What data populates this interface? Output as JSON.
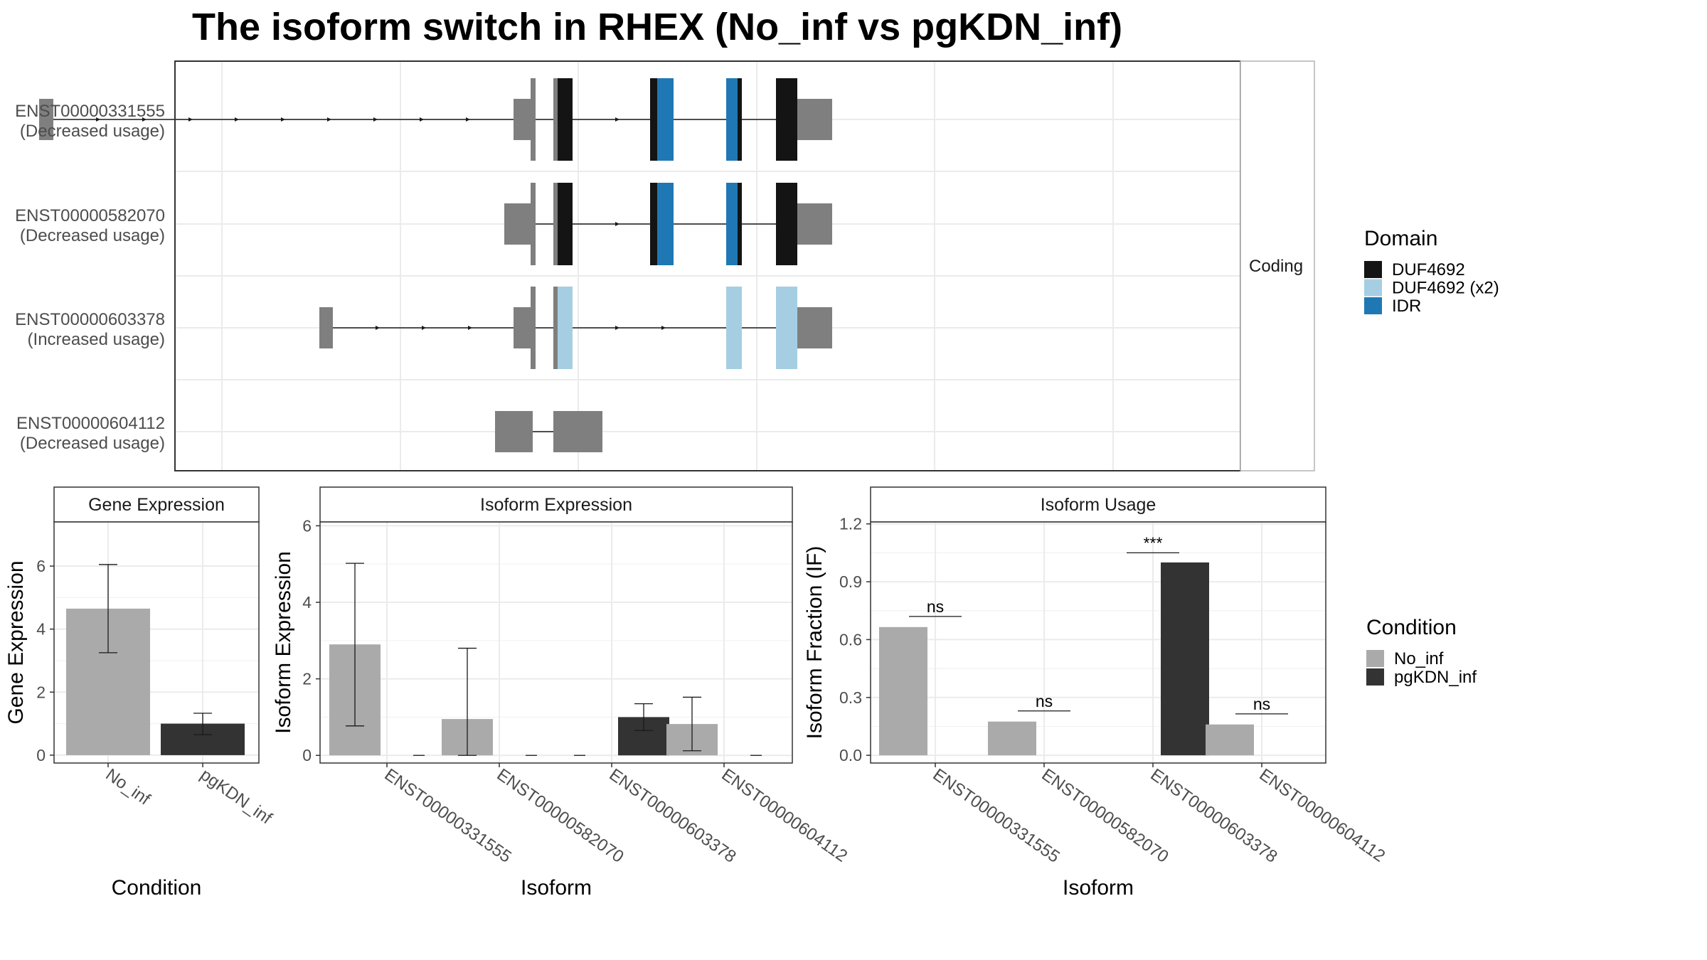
{
  "title": "The isoform switch in RHEX (No_inf vs pgKDN_inf)",
  "colors": {
    "utr": "#7f7f7f",
    "DUF4692": "#141414",
    "DUF4692 (x2)": "#a6cee3",
    "IDR": "#1f78b4",
    "No_inf": "#aaaaaa",
    "pgKDN_inf": "#333333"
  },
  "domain_legend": {
    "title": "Domain",
    "items": [
      "DUF4692",
      "DUF4692 (x2)",
      "IDR"
    ]
  },
  "condition_legend": {
    "title": "Condition",
    "items": [
      "No_inf",
      "pgKDN_inf"
    ]
  },
  "structure_strip": "Coding",
  "chart_data": [
    {
      "type": "gene-structure",
      "strip": "Coding",
      "transcripts": [
        {
          "id": "ENST00000331555",
          "usage": "(Decreased usage)",
          "exons": [
            {
              "start": 55,
              "end": 75,
              "type": "utr"
            },
            {
              "start": 722,
              "end": 746,
              "type": "utr"
            },
            {
              "start": 746,
              "end": 753,
              "type": "utr-narrow"
            },
            {
              "start": 778,
              "end": 784,
              "type": "utr-narrow"
            },
            {
              "start": 784,
              "end": 805,
              "type": "DUF4692"
            },
            {
              "start": 914,
              "end": 924,
              "type": "DUF4692"
            },
            {
              "start": 924,
              "end": 947,
              "type": "IDR"
            },
            {
              "start": 1021,
              "end": 1037,
              "type": "IDR"
            },
            {
              "start": 1037,
              "end": 1043,
              "type": "DUF4692"
            },
            {
              "start": 1091,
              "end": 1121,
              "type": "DUF4692"
            },
            {
              "start": 1121,
              "end": 1170,
              "type": "utr"
            }
          ]
        },
        {
          "id": "ENST00000582070",
          "usage": "(Decreased usage)",
          "exons": [
            {
              "start": 709,
              "end": 746,
              "type": "utr"
            },
            {
              "start": 746,
              "end": 753,
              "type": "utr-narrow"
            },
            {
              "start": 778,
              "end": 784,
              "type": "utr-narrow"
            },
            {
              "start": 784,
              "end": 805,
              "type": "DUF4692"
            },
            {
              "start": 914,
              "end": 924,
              "type": "DUF4692"
            },
            {
              "start": 924,
              "end": 947,
              "type": "IDR"
            },
            {
              "start": 1021,
              "end": 1037,
              "type": "IDR"
            },
            {
              "start": 1037,
              "end": 1043,
              "type": "DUF4692"
            },
            {
              "start": 1091,
              "end": 1121,
              "type": "DUF4692"
            },
            {
              "start": 1121,
              "end": 1170,
              "type": "utr"
            }
          ]
        },
        {
          "id": "ENST00000603378",
          "usage": "(Increased usage)",
          "exons": [
            {
              "start": 449,
              "end": 468,
              "type": "utr"
            },
            {
              "start": 722,
              "end": 746,
              "type": "utr"
            },
            {
              "start": 746,
              "end": 753,
              "type": "utr-narrow"
            },
            {
              "start": 778,
              "end": 784,
              "type": "utr-narrow"
            },
            {
              "start": 784,
              "end": 805,
              "type": "DUF4692 (x2)"
            },
            {
              "start": 1021,
              "end": 1043,
              "type": "DUF4692 (x2)"
            },
            {
              "start": 1091,
              "end": 1121,
              "type": "DUF4692 (x2)"
            },
            {
              "start": 1121,
              "end": 1170,
              "type": "utr"
            }
          ]
        },
        {
          "id": "ENST00000604112",
          "usage": "(Decreased usage)",
          "exons": [
            {
              "start": 696,
              "end": 749,
              "type": "utr"
            },
            {
              "start": 778,
              "end": 847,
              "type": "utr"
            }
          ]
        }
      ]
    },
    {
      "type": "bar",
      "strip": "Gene Expression",
      "xlabel": "Condition",
      "ylabel": "Gene Expression",
      "ylim": [
        -0.25,
        7.4
      ],
      "yticks": [
        0,
        2,
        4,
        6
      ],
      "categories": [
        "No_inf",
        "pgKDN_inf"
      ],
      "values": [
        4.65,
        1.0
      ],
      "errors": [
        [
          3.25,
          6.05
        ],
        [
          0.65,
          1.33
        ]
      ]
    },
    {
      "type": "bar",
      "strip": "Isoform Expression",
      "xlabel": "Isoform",
      "ylabel": "Isoform Expression",
      "ylim": [
        -0.2,
        6.1
      ],
      "yticks": [
        0,
        2,
        4,
        6
      ],
      "categories": [
        "ENST00000331555",
        "ENST00000582070",
        "ENST00000603378",
        "ENST00000604112"
      ],
      "series": [
        {
          "name": "No_inf",
          "values": [
            2.9,
            0.95,
            0.0,
            0.82
          ],
          "errors": [
            [
              0.77,
              5.02
            ],
            [
              0.0,
              2.8
            ],
            null,
            [
              0.12,
              1.52
            ]
          ]
        },
        {
          "name": "pgKDN_inf",
          "values": [
            0.0,
            0.0,
            1.0,
            0.0
          ],
          "errors": [
            null,
            null,
            [
              0.65,
              1.35
            ],
            null
          ]
        }
      ]
    },
    {
      "type": "bar",
      "strip": "Isoform Usage",
      "xlabel": "Isoform",
      "ylabel": "Isoform Fraction (IF)",
      "ylim": [
        -0.04,
        1.21
      ],
      "yticks": [
        "0.0",
        "0.3",
        "0.6",
        "0.9",
        "1.2"
      ],
      "categories": [
        "ENST00000331555",
        "ENST00000582070",
        "ENST00000603378",
        "ENST00000604112"
      ],
      "series": [
        {
          "name": "No_inf",
          "values": [
            0.665,
            0.175,
            0.0,
            0.16
          ]
        },
        {
          "name": "pgKDN_inf",
          "values": [
            0.0,
            0.0,
            1.0,
            0.0
          ]
        }
      ],
      "significance": [
        {
          "label": "ns",
          "y": 0.72
        },
        {
          "label": "ns",
          "y": 0.23
        },
        {
          "label": "***",
          "y": 1.05
        },
        {
          "label": "ns",
          "y": 0.215
        }
      ]
    }
  ]
}
